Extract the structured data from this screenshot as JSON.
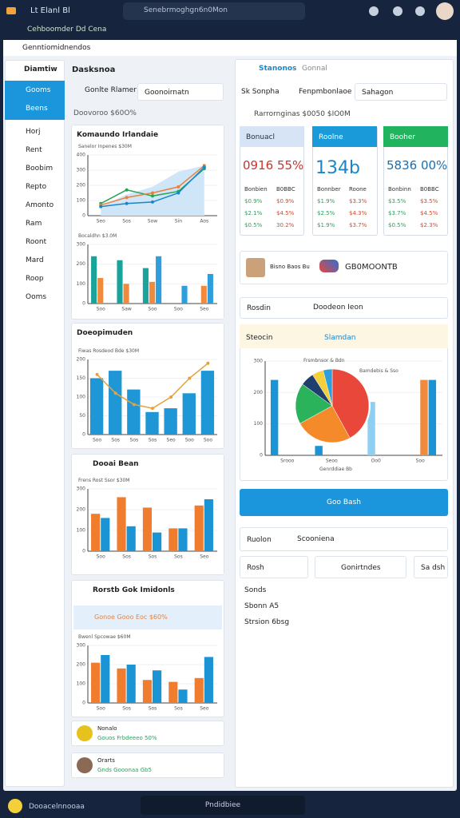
{
  "top_bar": {
    "app": "Lt Elanl Bl",
    "search": "Senebrmoghgn6n0Mon"
  },
  "sub_bar": {
    "workspace": "Cehboomder Dd Cena"
  },
  "header": {
    "title": "Genntiomidnendos"
  },
  "sidebar": {
    "title": "Diamtiw",
    "items": [
      "Gooms",
      "Beens",
      "Horj",
      "Rent",
      "Boobim",
      "Repto",
      "Amonto",
      "Ram",
      "Roont",
      "Mard",
      "Roop",
      "Ooms"
    ]
  },
  "left": {
    "title": "Dasksnoa",
    "filter_label": "Gonlte Rlamer",
    "filter": "Goonoirnatn",
    "kpi": "Doovoroo $60O%",
    "panels": [
      {
        "title": "Komaundo Irlandaie",
        "charts": [
          {
            "type": "line",
            "subtitle": "Sanelor Inpenes $30M",
            "categories": [
              "Seo",
              "Sos",
              "Sow",
              "Sin",
              "Aos"
            ],
            "ylim": [
              0,
              400
            ],
            "yticks": [
              0,
              100,
              200,
              300,
              400
            ],
            "series": [
              {
                "color": "#cfe6f8",
                "area": true,
                "values": [
                  60,
                  140,
                  190,
                  290,
                  330
                ]
              },
              {
                "color": "#2aa35a",
                "values": [
                  80,
                  170,
                  130,
                  160,
                  310
                ]
              },
              {
                "color": "#e8823a",
                "values": [
                  70,
                  120,
                  150,
                  190,
                  330
                ]
              },
              {
                "color": "#1a86c8",
                "values": [
                  60,
                  80,
                  90,
                  150,
                  320
                ]
              }
            ]
          },
          {
            "type": "bar",
            "subtitle": "Bocaldhn $3.0M",
            "categories": [
              "Soo",
              "Saw",
              "Soo",
              "Soo",
              "Seo"
            ],
            "ylim": [
              0,
              300
            ],
            "yticks": [
              0,
              100,
              200,
              300
            ],
            "series": [
              {
                "color": "#19a39a",
                "values": [
                  240,
                  220,
                  180,
                  0,
                  0
                ]
              },
              {
                "color": "#f08a3c",
                "values": [
                  130,
                  100,
                  110,
                  0,
                  90
                ]
              },
              {
                "color": "#2d9fdc",
                "values": [
                  0,
                  0,
                  240,
                  90,
                  150
                ]
              }
            ]
          }
        ]
      },
      {
        "title": "Doeopimuden",
        "charts": [
          {
            "type": "bar",
            "subtitle": "Fiwas Rosdeod Bde $30M",
            "categories": [
              "Soo",
              "Sos",
              "Sos",
              "Sos",
              "Seo",
              "Soo",
              "Soo"
            ],
            "ylim": [
              0,
              200
            ],
            "yticks": [
              0,
              50,
              100,
              150,
              200
            ],
            "series": [
              {
                "color": "#1f97d6",
                "values": [
                  150,
                  170,
                  120,
                  60,
                  70,
                  110,
                  170
                ]
              },
              {
                "color": "#e9a03a",
                "kind": "line",
                "values": [
                  160,
                  110,
                  80,
                  70,
                  100,
                  150,
                  190
                ]
              }
            ]
          }
        ]
      },
      {
        "title": "Dooai Bean",
        "charts": [
          {
            "type": "bar",
            "subtitle": "Frens Rost Ssor $30M",
            "categories": [
              "Soo",
              "Sos",
              "Sos",
              "Sos",
              "Seo"
            ],
            "ylim": [
              0,
              300
            ],
            "yticks": [
              0,
              100,
              200,
              300
            ],
            "series": [
              {
                "color": "#f07c2e",
                "values": [
                  180,
                  260,
                  210,
                  110,
                  220
                ]
              },
              {
                "color": "#1a94d4",
                "values": [
                  160,
                  120,
                  90,
                  110,
                  250
                ]
              }
            ]
          }
        ]
      },
      {
        "title": "Rorstb Gok Imidonls",
        "chip": "Gonoe Gooo Eoc $60%",
        "charts": [
          {
            "type": "bar",
            "subtitle": "Bwenl Spcowae $60M",
            "categories": [
              "Soo",
              "Sos",
              "Sos",
              "Sos",
              "Seo"
            ],
            "ylim": [
              0,
              300
            ],
            "yticks": [
              0,
              100,
              200,
              300
            ],
            "series": [
              {
                "color": "#f07c2e",
                "values": [
                  210,
                  180,
                  120,
                  110,
                  130
                ]
              },
              {
                "color": "#1a94d4",
                "values": [
                  250,
                  200,
                  170,
                  70,
                  240
                ]
              }
            ]
          }
        ]
      }
    ],
    "mini": [
      {
        "title": "Nonalo",
        "sub": "Gouos Frbdeeeo 50%"
      },
      {
        "title": "Orarts",
        "sub": "Gnds Gooonaa Gb5"
      }
    ]
  },
  "right": {
    "title": "Stanonos",
    "tab": "Gonnal",
    "filter_label": "Sk Sonpha",
    "filter2": "Fenpmbonlaoe",
    "dropdown": "Sahagon",
    "kpi": "Rarrornginas $0050 $IO0M",
    "cards": [
      {
        "head": "Bonuacl",
        "big": "0916 55%",
        "rows": [
          [
            "Bonbien",
            "B0BBC"
          ],
          [
            "$0.9%",
            "$0.9%"
          ],
          [
            "$2.1%",
            "$4.5%"
          ],
          [
            "$0.5%",
            "30.2%"
          ]
        ]
      },
      {
        "head": "Roolne",
        "big": "134b",
        "rows": [
          [
            "Bonnber",
            "Roone"
          ],
          [
            "$1.9%",
            "$3.3%"
          ],
          [
            "$2.5%",
            "$4.3%"
          ],
          [
            "$1.9%",
            "$3.7%"
          ]
        ]
      },
      {
        "head": "Booher",
        "big": "5836 00%",
        "rows": [
          [
            "Bonbinn",
            "B0BBC"
          ],
          [
            "$3.5%",
            "$3.5%"
          ],
          [
            "$3.7%",
            "$4.5%"
          ],
          [
            "$0.5%",
            "$2.3%"
          ]
        ]
      }
    ],
    "product": {
      "label": "Bisno Baos Bu",
      "code": "GB0MOONTB"
    },
    "row1": [
      "Rosdin",
      "Doodeon Ieon"
    ],
    "pie_panel": {
      "title": "Steocin",
      "chip": "Slamdan",
      "chart": {
        "type": "pie",
        "subtitle": "Frsmbnsor & Bdn",
        "note": "Bamdebis & Sso",
        "footer": "Genrddiae Bb",
        "categories": [
          "Srooo",
          "Seoo",
          "Oo0",
          "Soo"
        ],
        "pie": {
          "values": [
            42,
            25,
            18,
            6,
            5,
            4
          ],
          "colors": [
            "#e8473a",
            "#f58a2a",
            "#2bb35c",
            "#1f3f6e",
            "#f3cf3a",
            "#2d9fdc"
          ]
        },
        "ylim": [
          0,
          300
        ],
        "yticks": [
          0,
          100,
          200,
          300
        ],
        "series": [
          {
            "color": "#1a94d4",
            "values": [
              240,
              30,
              0,
              0
            ]
          },
          {
            "color": "#8fd0f2",
            "values": [
              0,
              0,
              170,
              0
            ]
          },
          {
            "color": "#f08a3c",
            "values": [
              0,
              0,
              0,
              240
            ]
          },
          {
            "color": "#1a94d4",
            "values": [
              0,
              0,
              0,
              240
            ]
          }
        ]
      }
    },
    "button": "Goo Bash",
    "row2": [
      "Ruolon",
      "Scooniena"
    ],
    "row3": [
      "Rosh",
      "Gonirtndes",
      "Sa dsh"
    ],
    "bullets": [
      "Sonds",
      "Sbonn A5",
      "Strsion 6bsg"
    ]
  },
  "bottom_bar": {
    "left": "Dooacelnnooaa",
    "center": "Pndidbiee"
  }
}
